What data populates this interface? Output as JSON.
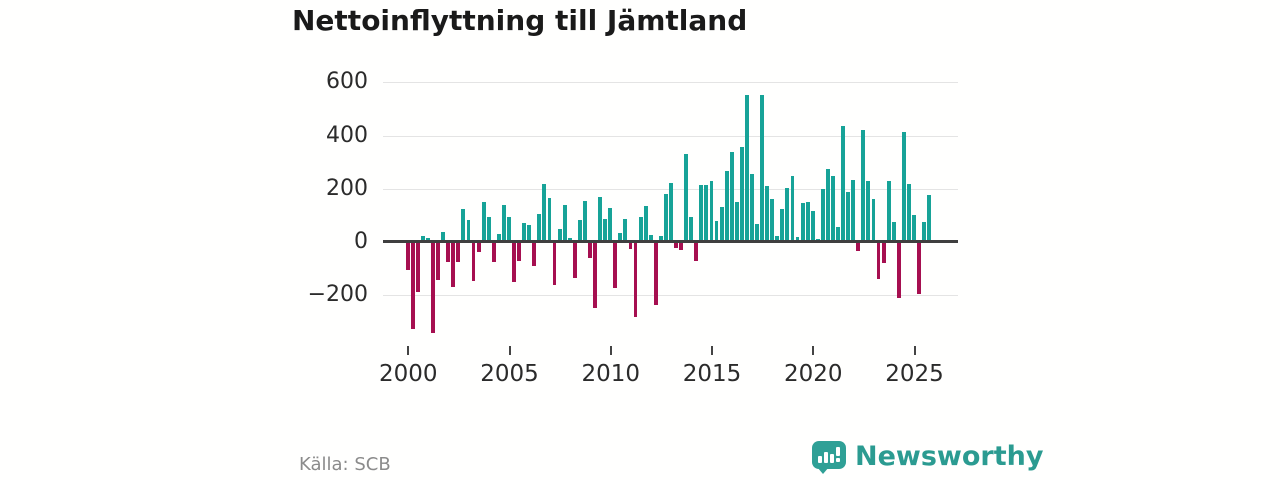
{
  "title": "Nettoinflyttning till Jämtland",
  "source": "Källa: SCB",
  "branding": {
    "wordmark": "Newsworthy",
    "icon": "speech-bubble-bar-chart"
  },
  "colors": {
    "positive_bar": "#17a398",
    "negative_bar": "#a60f50",
    "zero_line": "#3f3f3f",
    "gridline": "#e4e4e4",
    "title_text": "#1a1a1a",
    "axis_text": "#2b2b2b",
    "source_text": "#8b8b8b",
    "brand_teal": "#2b9b91",
    "brand_icon_teal": "#2fa096"
  },
  "chart_data": {
    "type": "bar",
    "title": "Nettoinflyttning till Jämtland",
    "frequency": "quarterly",
    "start": "2000 Q1",
    "end": "2025 Q4",
    "x_tick_labels": [
      "2000",
      "2005",
      "2010",
      "2015",
      "2020",
      "2025"
    ],
    "y_ticks": [
      600,
      400,
      200,
      0,
      -200
    ],
    "y_tick_labels": [
      "600",
      "400",
      "200",
      "0",
      "−200"
    ],
    "ylim": [
      -400,
      660
    ],
    "grid": "horizontal",
    "legend": "none",
    "xlabel": "",
    "ylabel": "",
    "values": [
      -105,
      -330,
      -190,
      20,
      13,
      -345,
      -145,
      38,
      -75,
      -170,
      -75,
      125,
      80,
      -148,
      -38,
      150,
      92,
      -75,
      28,
      140,
      94,
      -150,
      -72,
      72,
      62,
      -92,
      105,
      218,
      163,
      -163,
      46,
      140,
      15,
      -137,
      82,
      154,
      -61,
      -251,
      170,
      86,
      127,
      -173,
      34,
      87,
      -26,
      -283,
      94,
      133,
      24,
      -238,
      22,
      179,
      222,
      -22,
      -33,
      330,
      93,
      -71,
      215,
      213,
      228,
      77,
      132,
      267,
      339,
      151,
      357,
      552,
      254,
      68,
      551,
      209,
      161,
      23,
      125,
      204,
      249,
      17,
      146,
      148,
      116,
      9,
      197,
      275,
      249,
      55,
      437,
      187,
      232,
      -35,
      419,
      229,
      161,
      -142,
      -81,
      229,
      75,
      -213,
      415,
      219,
      99,
      -197,
      74,
      177
    ]
  }
}
